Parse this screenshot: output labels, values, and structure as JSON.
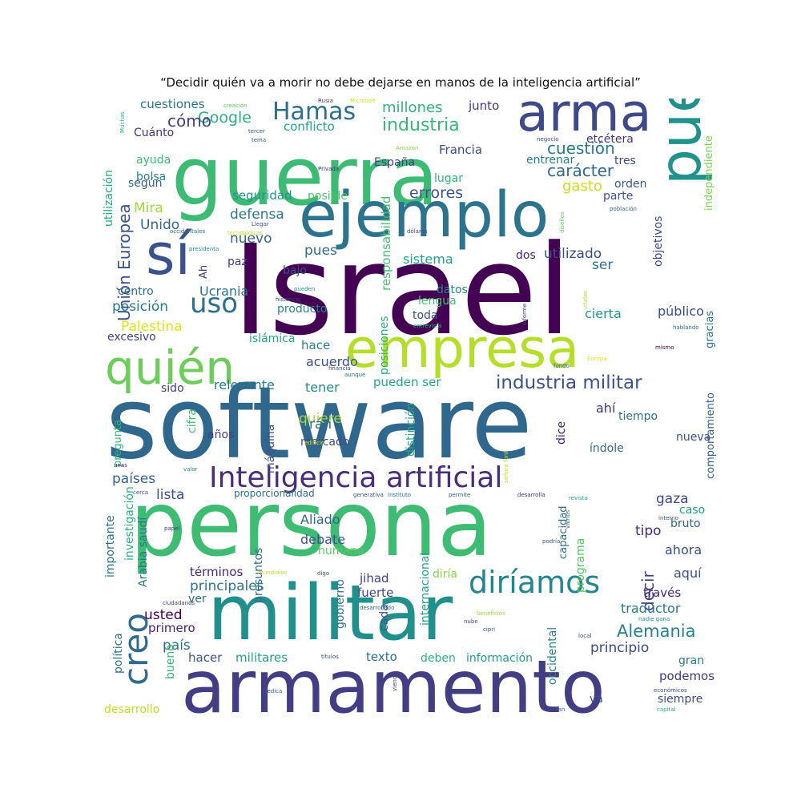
{
  "title": "“Decidir quién va a morir no debe dejarse en manos de la inteligencia artificial”",
  "cloud": {
    "words": [
      {
        "text": "Israel",
        "color": "#440154"
      },
      {
        "text": "software",
        "color": "#30678d"
      },
      {
        "text": "persona",
        "color": "#3fbc73"
      },
      {
        "text": "guerra",
        "color": "#3dbb74"
      },
      {
        "text": "militar",
        "color": "#21908d"
      },
      {
        "text": "armamento",
        "color": "#433d84"
      },
      {
        "text": "ejemplo",
        "color": "#2c738e"
      },
      {
        "text": "empresa",
        "color": "#b5de2b"
      },
      {
        "text": "puede",
        "color": "#21918c"
      },
      {
        "text": "arma",
        "color": "#3e4989"
      },
      {
        "text": "sí",
        "color": "#3b518b"
      },
      {
        "text": "quién",
        "color": "#6ccd5a"
      },
      {
        "text": "Inteligencia artificial",
        "color": "#472d7b"
      },
      {
        "text": "diríamos",
        "color": "#25858e"
      },
      {
        "text": "creo",
        "color": "#306a8e"
      },
      {
        "text": "uso",
        "color": "#2e6f8e"
      },
      {
        "text": "Hamas",
        "color": "#2e6e8e"
      },
      {
        "text": "industria militar",
        "color": "#3b528b"
      },
      {
        "text": "industria",
        "color": "#35b779"
      },
      {
        "text": "Alemania",
        "color": "#26828e"
      },
      {
        "text": "millones",
        "color": "#31b57b"
      },
      {
        "text": "cuestión",
        "color": "#29798e"
      },
      {
        "text": "carácter",
        "color": "#31668e"
      },
      {
        "text": "decir",
        "color": "#424086"
      },
      {
        "text": "Google",
        "color": "#2ab07f"
      },
      {
        "text": "cómo",
        "color": "#424086"
      },
      {
        "text": "errores",
        "color": "#3b528b"
      },
      {
        "text": "gasto",
        "color": "#c8e020"
      },
      {
        "text": "Unión Europea",
        "color": "#3b528b"
      },
      {
        "text": "Palestina",
        "color": "#dde318"
      },
      {
        "text": "posición",
        "color": "#2a788e"
      },
      {
        "text": "quiere",
        "color": "#a2da37"
      },
      {
        "text": "Ucrania",
        "color": "#2c728e"
      },
      {
        "text": "sistema",
        "color": "#20a386"
      },
      {
        "text": "pues",
        "color": "#2f6c8e"
      },
      {
        "text": "nuevo",
        "color": "#33638d"
      },
      {
        "text": "defensa",
        "color": "#2a788e"
      },
      {
        "text": "Mira",
        "color": "#9fda3a"
      },
      {
        "text": "Unido",
        "color": "#31678e"
      },
      {
        "text": "ayuda",
        "color": "#3bbb75"
      },
      {
        "text": "bolsa",
        "color": "#27808e"
      },
      {
        "text": "según",
        "color": "#33628d"
      },
      {
        "text": "Cuánto",
        "color": "#46337f"
      },
      {
        "text": "cuestiones",
        "color": "#2a768e"
      },
      {
        "text": "conflicto",
        "color": "#21a685"
      },
      {
        "text": "junto",
        "color": "#453781"
      },
      {
        "text": "Francia",
        "color": "#3e4a89"
      },
      {
        "text": "España",
        "color": "#433e85"
      },
      {
        "text": "lugar",
        "color": "#31b57b"
      },
      {
        "text": "entrenar",
        "color": "#277f8e"
      },
      {
        "text": "tres",
        "color": "#3e4a89"
      },
      {
        "text": "orden",
        "color": "#38588c"
      },
      {
        "text": "parte",
        "color": "#3b518b"
      },
      {
        "text": "etcétera",
        "color": "#443a83"
      },
      {
        "text": "seguridad",
        "color": "#20938c"
      },
      {
        "text": "posible",
        "color": "#50c46a"
      },
      {
        "text": "responsabilidad",
        "color": "#44bf70"
      },
      {
        "text": "utilizado",
        "color": "#3c4f8a"
      },
      {
        "text": "dos",
        "color": "#482576"
      },
      {
        "text": "ser",
        "color": "#2d718e"
      },
      {
        "text": "objetivos",
        "color": "#3f4889"
      },
      {
        "text": "independiente",
        "color": "#7cd250"
      },
      {
        "text": "utilización",
        "color": "#22a884"
      },
      {
        "text": "paz",
        "color": "#453882"
      },
      {
        "text": "Ah",
        "color": "#453781"
      },
      {
        "text": "bajo",
        "color": "#3b518b"
      },
      {
        "text": "centro",
        "color": "#2e6e8e"
      },
      {
        "text": "datos",
        "color": "#23888e"
      },
      {
        "text": "lengua",
        "color": "#46c06f"
      },
      {
        "text": "producto",
        "color": "#25848e"
      },
      {
        "text": "toda",
        "color": "#3e4c8a"
      },
      {
        "text": "cierta",
        "color": "#1f968b"
      },
      {
        "text": "público",
        "color": "#3d4e8a"
      },
      {
        "text": "excesivo",
        "color": "#424086"
      },
      {
        "text": "islámica",
        "color": "#22a785"
      },
      {
        "text": "hace",
        "color": "#27808e"
      },
      {
        "text": "acuerdo",
        "color": "#3b518b"
      },
      {
        "text": "posiciones",
        "color": "#29af7f"
      },
      {
        "text": "gracias",
        "color": "#2a768e"
      },
      {
        "text": "comportamiento",
        "color": "#33628d"
      },
      {
        "text": "relevante",
        "color": "#2a788e"
      },
      {
        "text": "sido",
        "color": "#433d84"
      },
      {
        "text": "tener",
        "color": "#23898e"
      },
      {
        "text": "pueden ser",
        "color": "#22a884"
      },
      {
        "text": "distinción",
        "color": "#24aa83"
      },
      {
        "text": "Irán",
        "color": "#2e6e8e"
      },
      {
        "text": "máquina",
        "color": "#3b528b"
      },
      {
        "text": "años",
        "color": "#424086"
      },
      {
        "text": "cifra",
        "color": "#3dbb74"
      },
      {
        "text": "pregunta",
        "color": "#31b57b"
      },
      {
        "text": "mercado",
        "color": "#3e4a89"
      },
      {
        "text": "ahí",
        "color": "#46337f"
      },
      {
        "text": "tiempo",
        "color": "#2c738e"
      },
      {
        "text": "dice",
        "color": "#482173"
      },
      {
        "text": "índole",
        "color": "#2c718e"
      },
      {
        "text": "nueva",
        "color": "#3b528b"
      },
      {
        "text": "países",
        "color": "#35608d"
      },
      {
        "text": "lista",
        "color": "#3c508b"
      },
      {
        "text": "gaza",
        "color": "#3e4989"
      },
      {
        "text": "caso",
        "color": "#1f9f88"
      },
      {
        "text": "bruto",
        "color": "#33638d"
      },
      {
        "text": "tipo",
        "color": "#482878"
      },
      {
        "text": "ahora",
        "color": "#3e4c8a"
      },
      {
        "text": "aquí",
        "color": "#3b528b"
      },
      {
        "text": "importante",
        "color": "#2d708e"
      },
      {
        "text": "investigación",
        "color": "#2ab07f"
      },
      {
        "text": "Arabia saudí",
        "color": "#2c728e"
      },
      {
        "text": "presuntos",
        "color": "#306a8e"
      },
      {
        "text": "Aliado",
        "color": "#32648e"
      },
      {
        "text": "debate",
        "color": "#3a548c"
      },
      {
        "text": "humano",
        "color": "#5ec962"
      },
      {
        "text": "términos",
        "color": "#482475"
      },
      {
        "text": "principales",
        "color": "#2a768e"
      },
      {
        "text": "ver",
        "color": "#2f6c8e"
      },
      {
        "text": "usted",
        "color": "#440154"
      },
      {
        "text": "primero",
        "color": "#482173"
      },
      {
        "text": "país",
        "color": "#2e6f8e"
      },
      {
        "text": "política",
        "color": "#2c728e"
      },
      {
        "text": "bueno",
        "color": "#37b878"
      },
      {
        "text": "hacer",
        "color": "#3b528b"
      },
      {
        "text": "militares",
        "color": "#20a386"
      },
      {
        "text": "desarrollo",
        "color": "#c0df25"
      },
      {
        "text": "jihad",
        "color": "#424086"
      },
      {
        "text": "fuerte",
        "color": "#3f4889"
      },
      {
        "text": "diría",
        "color": "#89d548"
      },
      {
        "text": "gobierno",
        "color": "#2c728e"
      },
      {
        "text": "internacional",
        "color": "#1fa287"
      },
      {
        "text": "cada",
        "color": "#3b528b"
      },
      {
        "text": "texto",
        "color": "#2c738e"
      },
      {
        "text": "información",
        "color": "#1f9e89"
      },
      {
        "text": "deben",
        "color": "#2db27d"
      },
      {
        "text": "occidental",
        "color": "#26828e"
      },
      {
        "text": "va",
        "color": "#3b528b"
      },
      {
        "text": "capacidad",
        "color": "#2d708e"
      },
      {
        "text": "programa",
        "color": "#54c568"
      },
      {
        "text": "través",
        "color": "#482576"
      },
      {
        "text": "traductor",
        "color": "#2a778e"
      },
      {
        "text": "principio",
        "color": "#3f4889"
      },
      {
        "text": "gran",
        "color": "#29798e"
      },
      {
        "text": "podemos",
        "color": "#453781"
      },
      {
        "text": "siempre",
        "color": "#3d4d8a"
      },
      {
        "text": "Muchas",
        "color": "#2db27d"
      },
      {
        "text": "creación",
        "color": "#5ec962"
      },
      {
        "text": "Rusia",
        "color": "#46337f"
      },
      {
        "text": "Microsoft",
        "color": "#d0e11c"
      },
      {
        "text": "tercer",
        "color": "#39568c"
      },
      {
        "text": "tema",
        "color": "#33638d"
      },
      {
        "text": "Amazon",
        "color": "#8bd646"
      },
      {
        "text": "Privada",
        "color": "#46307e"
      },
      {
        "text": "negocio",
        "color": "#3e4989"
      },
      {
        "text": "población",
        "color": "#31678e"
      },
      {
        "text": "diseños",
        "color": "#5ec962"
      },
      {
        "text": "Llegar",
        "color": "#3c4f8a"
      },
      {
        "text": "tecnológicas",
        "color": "#bddf26"
      },
      {
        "text": "dólares",
        "color": "#3e4c8a"
      },
      {
        "text": "occidentales",
        "color": "#2d708e"
      },
      {
        "text": "presidenta",
        "color": "#21918c"
      },
      {
        "text": "pueden",
        "color": "#1f9a8a"
      },
      {
        "text": "histórico",
        "color": "#3e4989"
      },
      {
        "text": "entrevista",
        "color": "#34b679"
      },
      {
        "text": "informe",
        "color": "#3e4c8a"
      },
      {
        "text": "vitales",
        "color": "#b8de29"
      },
      {
        "text": "hablando",
        "color": "#2e6f8e"
      },
      {
        "text": "mismo",
        "color": "#440154"
      },
      {
        "text": "financia",
        "color": "#3b528b"
      },
      {
        "text": "aunque",
        "color": "#2d718e"
      },
      {
        "text": "Europa",
        "color": "#dde318"
      },
      {
        "text": "fondo",
        "color": "#33638d"
      },
      {
        "text": "edificio",
        "color": "#d2e21b"
      },
      {
        "text": "señora font",
        "color": "#c2df23"
      },
      {
        "text": "valor",
        "color": "#25848e"
      },
      {
        "text": "unas",
        "color": "#482677"
      },
      {
        "text": "cerca",
        "color": "#3e4a89"
      },
      {
        "text": "proporcionalidad",
        "color": "#2c718e"
      },
      {
        "text": "generativa",
        "color": "#3b518b"
      },
      {
        "text": "Instituto",
        "color": "#2b748e"
      },
      {
        "text": "permite",
        "color": "#31678e"
      },
      {
        "text": "desarrolla",
        "color": "#463480"
      },
      {
        "text": "revista",
        "color": "#21a685"
      },
      {
        "text": "interno",
        "color": "#3b528b"
      },
      {
        "text": "vamos",
        "color": "#39568c"
      },
      {
        "text": "papel",
        "color": "#443a83"
      },
      {
        "text": "podría",
        "color": "#38588c"
      },
      {
        "text": "mundiales",
        "color": "#c2df23"
      },
      {
        "text": "digo",
        "color": "#3b518b"
      },
      {
        "text": "desarrollado",
        "color": "#2f6c8e"
      },
      {
        "text": "ciudadanos",
        "color": "#443a83"
      },
      {
        "text": "nube",
        "color": "#3e4a89"
      },
      {
        "text": "beneficios",
        "color": "#9fda3a"
      },
      {
        "text": "cipri",
        "color": "#3b528b"
      },
      {
        "text": "nadie gana",
        "color": "#21918c"
      },
      {
        "text": "local",
        "color": "#3e4989"
      },
      {
        "text": "títulos",
        "color": "#3e4c8a"
      },
      {
        "text": "viendo",
        "color": "#3f4889"
      },
      {
        "text": "dedica",
        "color": "#39568c"
      },
      {
        "text": "tan",
        "color": "#31678e"
      },
      {
        "text": "económicos",
        "color": "#3e4a89"
      },
      {
        "text": "capital",
        "color": "#29af7f"
      }
    ]
  }
}
